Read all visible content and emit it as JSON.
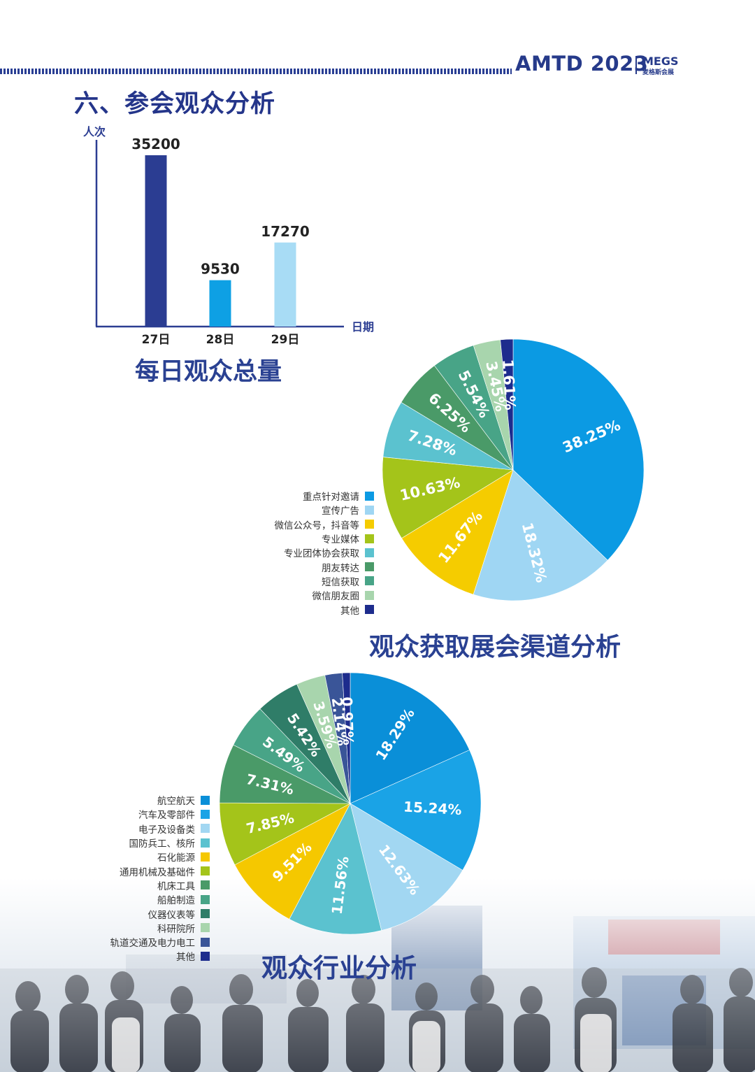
{
  "header": {
    "brand": "AMTD 2023",
    "logo_main": "MEGS",
    "logo_sub": "麦格斯会展"
  },
  "section_title": "六、参会观众分析",
  "colors": {
    "navy": "#26398c",
    "bar_dark": "#2b3d92",
    "bar_mid": "#0ea0e4",
    "bar_light": "#a8dcf5"
  },
  "chart_data": [
    {
      "type": "bar",
      "title": "每日观众总量",
      "ylabel": "人次",
      "xlabel": "日期",
      "categories": [
        "27日",
        "28日",
        "29日"
      ],
      "values": [
        35200,
        9530,
        17270
      ],
      "value_labels": [
        "35200",
        "9530",
        "17270"
      ],
      "colors": [
        "#2b3d92",
        "#0ea0e4",
        "#a8dcf5"
      ],
      "ylim": [
        0,
        40000
      ],
      "grid": false
    },
    {
      "type": "pie",
      "title": "观众获取展会渠道分析",
      "legend_position": "left",
      "slices": [
        {
          "label": "重点针对邀请",
          "value": 38.25,
          "text": "38.25%",
          "color": "#0b9ae3"
        },
        {
          "label": "宣传广告",
          "value": 18.32,
          "text": "18.32%",
          "color": "#9fd6f3"
        },
        {
          "label": "微信公众号，抖音等",
          "value": 11.67,
          "text": "11.67%",
          "color": "#f5cc00"
        },
        {
          "label": "专业媒体",
          "value": 10.63,
          "text": "10.63%",
          "color": "#a4c41a"
        },
        {
          "label": "专业团体协会获取",
          "value": 7.28,
          "text": "7.28%",
          "color": "#5bc2cf"
        },
        {
          "label": "朋友转达",
          "value": 6.25,
          "text": "6.25%",
          "color": "#4a9a68"
        },
        {
          "label": "短信获取",
          "value": 5.54,
          "text": "5.54%",
          "color": "#48a487"
        },
        {
          "label": "微信朋友圈",
          "value": 3.45,
          "text": "3.45%",
          "color": "#a8d5ad"
        },
        {
          "label": "其他",
          "value": 1.61,
          "text": "1.61%",
          "color": "#1d2c8d"
        }
      ]
    },
    {
      "type": "pie",
      "title": "观众行业分析",
      "legend_position": "left",
      "slices": [
        {
          "label": "航空航天",
          "value": 18.29,
          "text": "18.29%",
          "color": "#0a8fd8"
        },
        {
          "label": "汽车及零部件",
          "value": 15.24,
          "text": "15.24%",
          "color": "#1aa3e6"
        },
        {
          "label": "电子及设备类",
          "value": 12.63,
          "text": "12.63%",
          "color": "#a2d7f2"
        },
        {
          "label": "国防兵工、核所",
          "value": 11.56,
          "text": "11.56%",
          "color": "#5bc2cf"
        },
        {
          "label": "石化能源",
          "value": 9.51,
          "text": "9.51%",
          "color": "#f5c800"
        },
        {
          "label": "通用机械及基础件",
          "value": 7.85,
          "text": "7.85%",
          "color": "#a4c41a"
        },
        {
          "label": "机床工具",
          "value": 7.31,
          "text": "7.31%",
          "color": "#4a9a68"
        },
        {
          "label": "船舶制造",
          "value": 5.49,
          "text": "5.49%",
          "color": "#48a487"
        },
        {
          "label": "仪器仪表等",
          "value": 5.42,
          "text": "5.42%",
          "color": "#2f7d68"
        },
        {
          "label": "科研院所",
          "value": 3.59,
          "text": "3.59%",
          "color": "#a8d5ad"
        },
        {
          "label": "轨道交通及电力电工",
          "value": 2.14,
          "text": "2.14%",
          "color": "#3a5598"
        },
        {
          "label": "其他",
          "value": 0.97,
          "text": "0.97%",
          "color": "#1d2c8d"
        }
      ]
    }
  ]
}
